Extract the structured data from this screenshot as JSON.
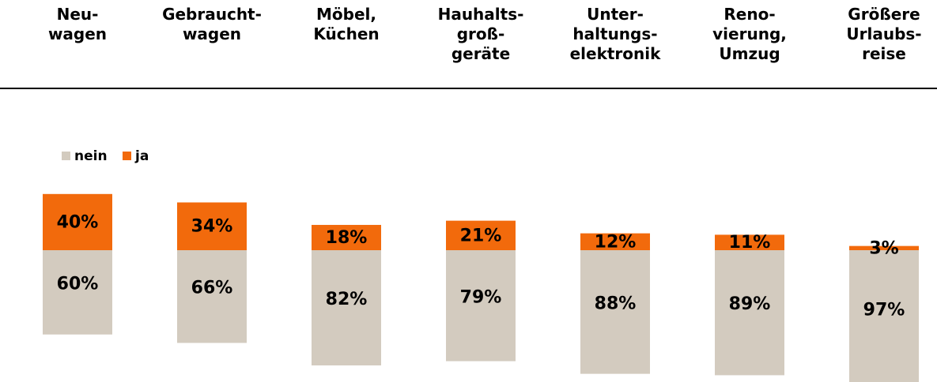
{
  "chart_data": {
    "type": "stacked_bar",
    "categories": [
      "Neu-\nwagen",
      "Gebraucht-\nwagen",
      "Möbel,\nKüchen",
      "Hauhalts-\ngroß-\ngeräte",
      "Unter-\nhaltungs-\nelektronik",
      "Reno-\nvierung,\nUmzug",
      "Größere\nUrlaubs-\nreise"
    ],
    "series": [
      {
        "name": "nein",
        "color": "#d3cbbf",
        "values": [
          60,
          66,
          82,
          79,
          88,
          89,
          97
        ],
        "value_labels": [
          "60%",
          "66%",
          "82%",
          "79%",
          "88%",
          "89%",
          "97%"
        ]
      },
      {
        "name": "ja",
        "color": "#f26a0c",
        "values": [
          40,
          34,
          18,
          21,
          12,
          11,
          3
        ],
        "value_labels": [
          "40%",
          "34%",
          "18%",
          "21%",
          "12%",
          "11%",
          "3%"
        ]
      }
    ]
  }
}
